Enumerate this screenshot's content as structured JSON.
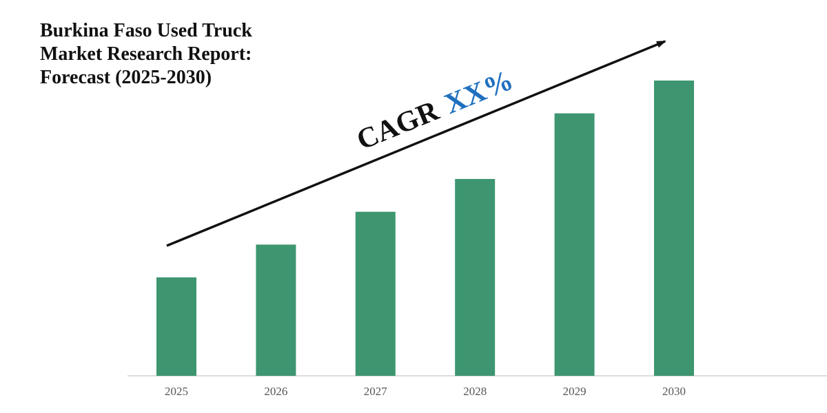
{
  "title_lines": [
    "Burkina Faso Used Truck",
    "Market Research Report:",
    "Forecast (2025-2030)"
  ],
  "cagr": {
    "label": "CAGR",
    "value": "XX%",
    "value_color": "#1f6fbf"
  },
  "colors": {
    "bar": "#3d9670",
    "axis": "#d0d0d0",
    "arrow": "#111111"
  },
  "chart_data": {
    "type": "bar",
    "categories": [
      "2025",
      "2026",
      "2027",
      "2028",
      "2029",
      "2030"
    ],
    "values": [
      30,
      40,
      50,
      60,
      80,
      90
    ],
    "xlabel": "",
    "ylabel": "",
    "ylim": [
      0,
      90
    ],
    "grid": false,
    "legend": "none"
  }
}
